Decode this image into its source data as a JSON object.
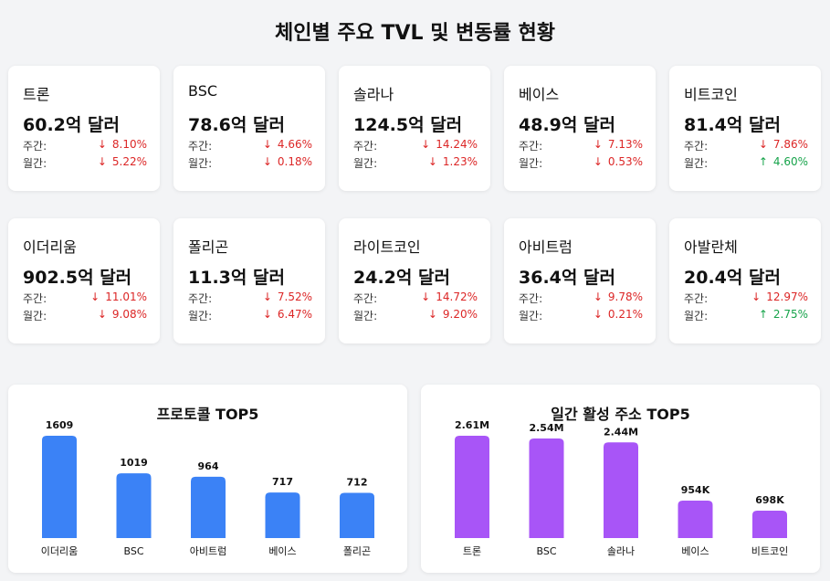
{
  "title": "체인별 주요 TVL 및 변동률 현황",
  "labels": {
    "weekly": "주간:",
    "monthly": "월간:"
  },
  "cards": [
    {
      "name": "트론",
      "value": "60.2억 달러",
      "weekly": {
        "dir": "down",
        "arrow": "↓",
        "pct": "8.10%"
      },
      "monthly": {
        "dir": "down",
        "arrow": "↓",
        "pct": "5.22%"
      }
    },
    {
      "name": "BSC",
      "value": "78.6억 달러",
      "weekly": {
        "dir": "down",
        "arrow": "↓",
        "pct": "4.66%"
      },
      "monthly": {
        "dir": "down",
        "arrow": "↓",
        "pct": "0.18%"
      }
    },
    {
      "name": "솔라나",
      "value": "124.5억 달러",
      "weekly": {
        "dir": "down",
        "arrow": "↓",
        "pct": "14.24%"
      },
      "monthly": {
        "dir": "down",
        "arrow": "↓",
        "pct": "1.23%"
      }
    },
    {
      "name": "베이스",
      "value": "48.9억 달러",
      "weekly": {
        "dir": "down",
        "arrow": "↓",
        "pct": "7.13%"
      },
      "monthly": {
        "dir": "down",
        "arrow": "↓",
        "pct": "0.53%"
      }
    },
    {
      "name": "비트코인",
      "value": "81.4억 달러",
      "weekly": {
        "dir": "down",
        "arrow": "↓",
        "pct": "7.86%"
      },
      "monthly": {
        "dir": "up",
        "arrow": "↑",
        "pct": "4.60%"
      }
    },
    {
      "name": "이더리움",
      "value": "902.5억 달러",
      "weekly": {
        "dir": "down",
        "arrow": "↓",
        "pct": "11.01%"
      },
      "monthly": {
        "dir": "down",
        "arrow": "↓",
        "pct": "9.08%"
      }
    },
    {
      "name": "폴리곤",
      "value": "11.3억 달러",
      "weekly": {
        "dir": "down",
        "arrow": "↓",
        "pct": "7.52%"
      },
      "monthly": {
        "dir": "down",
        "arrow": "↓",
        "pct": "6.47%"
      }
    },
    {
      "name": "라이트코인",
      "value": "24.2억 달러",
      "weekly": {
        "dir": "down",
        "arrow": "↓",
        "pct": "14.72%"
      },
      "monthly": {
        "dir": "down",
        "arrow": "↓",
        "pct": "9.20%"
      }
    },
    {
      "name": "아비트럼",
      "value": "36.4억 달러",
      "weekly": {
        "dir": "down",
        "arrow": "↓",
        "pct": "9.78%"
      },
      "monthly": {
        "dir": "down",
        "arrow": "↓",
        "pct": "0.21%"
      }
    },
    {
      "name": "아발란체",
      "value": "20.4억 달러",
      "weekly": {
        "dir": "down",
        "arrow": "↓",
        "pct": "12.97%"
      },
      "monthly": {
        "dir": "up",
        "arrow": "↑",
        "pct": "2.75%"
      }
    }
  ],
  "colors": {
    "down": "#dc2626",
    "up": "#16a34a",
    "blue_bar": "#3b82f6",
    "purple_bar": "#a855f7"
  },
  "chart_data": [
    {
      "type": "bar",
      "title": "프로토콜 TOP5",
      "categories": [
        "이더리움",
        "BSC",
        "아비트럼",
        "베이스",
        "폴리곤"
      ],
      "values": [
        1609,
        1019,
        964,
        717,
        712
      ],
      "value_labels": [
        "1609",
        "1019",
        "964",
        "717",
        "712"
      ],
      "ylim": [
        0,
        1609
      ],
      "color": "#3b82f6",
      "grid": false
    },
    {
      "type": "bar",
      "title": "일간 활성 주소 TOP5",
      "categories": [
        "트론",
        "BSC",
        "솔라나",
        "베이스",
        "비트코인"
      ],
      "values": [
        2610000,
        2540000,
        2440000,
        954000,
        698000
      ],
      "value_labels": [
        "2.61M",
        "2.54M",
        "2.44M",
        "954K",
        "698K"
      ],
      "ylim": [
        0,
        2610000
      ],
      "color": "#a855f7",
      "grid": false
    }
  ]
}
